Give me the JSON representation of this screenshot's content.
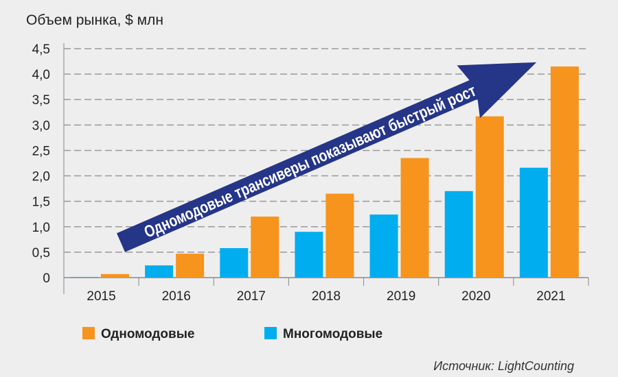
{
  "chart_data": {
    "type": "bar",
    "title": "Объем рынка, $ млн",
    "categories": [
      "2015",
      "2016",
      "2017",
      "2018",
      "2019",
      "2020",
      "2021"
    ],
    "series": [
      {
        "name": "Многомодовые",
        "color": "#00adef",
        "values": [
          0.01,
          0.24,
          0.58,
          0.9,
          1.24,
          1.7,
          2.16
        ]
      },
      {
        "name": "Одномодовые",
        "color": "#f7941d",
        "values": [
          0.07,
          0.47,
          1.2,
          1.65,
          2.35,
          3.17,
          4.15
        ]
      }
    ],
    "yticks": [
      "0",
      "0,5",
      "1,0",
      "1,5",
      "2,0",
      "2,5",
      "3,0",
      "3,5",
      "4,0",
      "4,5"
    ],
    "ylim": [
      0,
      4.5
    ],
    "grid": true,
    "legend": [
      {
        "label": "Одномодовые",
        "color": "#f7941d"
      },
      {
        "label": "Многомодовые",
        "color": "#00adef"
      }
    ],
    "legend_placement": "bottom",
    "annotation": "Одномодовые трансиверы показывают быстрый рост",
    "annotation_color": "#253588",
    "source": "Источник: LightCounting"
  }
}
